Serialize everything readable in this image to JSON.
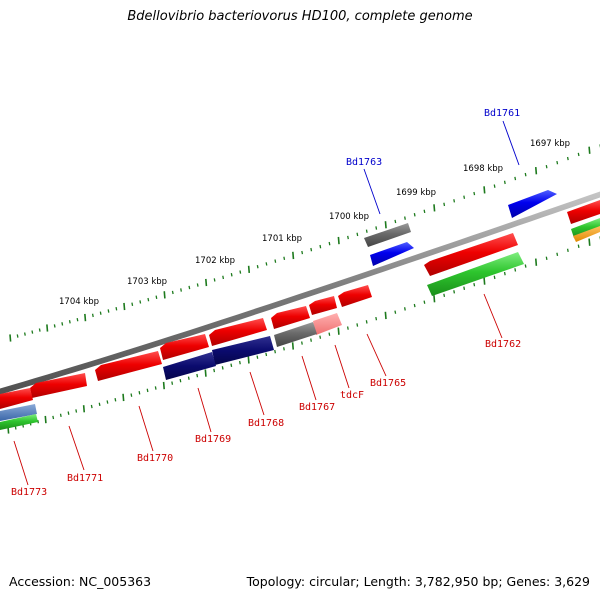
{
  "title": "Bdellovibrio bacteriovorus HD100, complete genome",
  "footer": {
    "accession": "Accession: NC_005363",
    "summary": "Topology: circular; Length: 3,782,950 bp; Genes: 3,629"
  },
  "colors": {
    "backbone": "#7a7a7a",
    "tick": "#1d7a1d",
    "label_forward": "#0000cc",
    "label_reverse": "#cc0000",
    "leader": "#cc0000",
    "leader_forward": "#0000cc"
  },
  "ruler_labels": [
    {
      "text": "1704 kbp"
    },
    {
      "text": "1703 kbp"
    },
    {
      "text": "1702 kbp"
    },
    {
      "text": "1701 kbp"
    },
    {
      "text": "1700 kbp"
    },
    {
      "text": "1699 kbp"
    },
    {
      "text": "1698 kbp"
    },
    {
      "text": "1697 kbp"
    }
  ],
  "genes": [
    {
      "name": "Bd1761",
      "color": "blue"
    },
    {
      "name": "Bd1763",
      "color": "blue"
    },
    {
      "name": "Bd1762",
      "color": "red"
    },
    {
      "name": "Bd1765",
      "color": "red"
    },
    {
      "name": "tdcF",
      "color": "red"
    },
    {
      "name": "Bd1767",
      "color": "red"
    },
    {
      "name": "Bd1768",
      "color": "red"
    },
    {
      "name": "Bd1769",
      "color": "red"
    },
    {
      "name": "Bd1770",
      "color": "red"
    },
    {
      "name": "Bd1771",
      "color": "red"
    },
    {
      "name": "Bd1773",
      "color": "red"
    }
  ]
}
